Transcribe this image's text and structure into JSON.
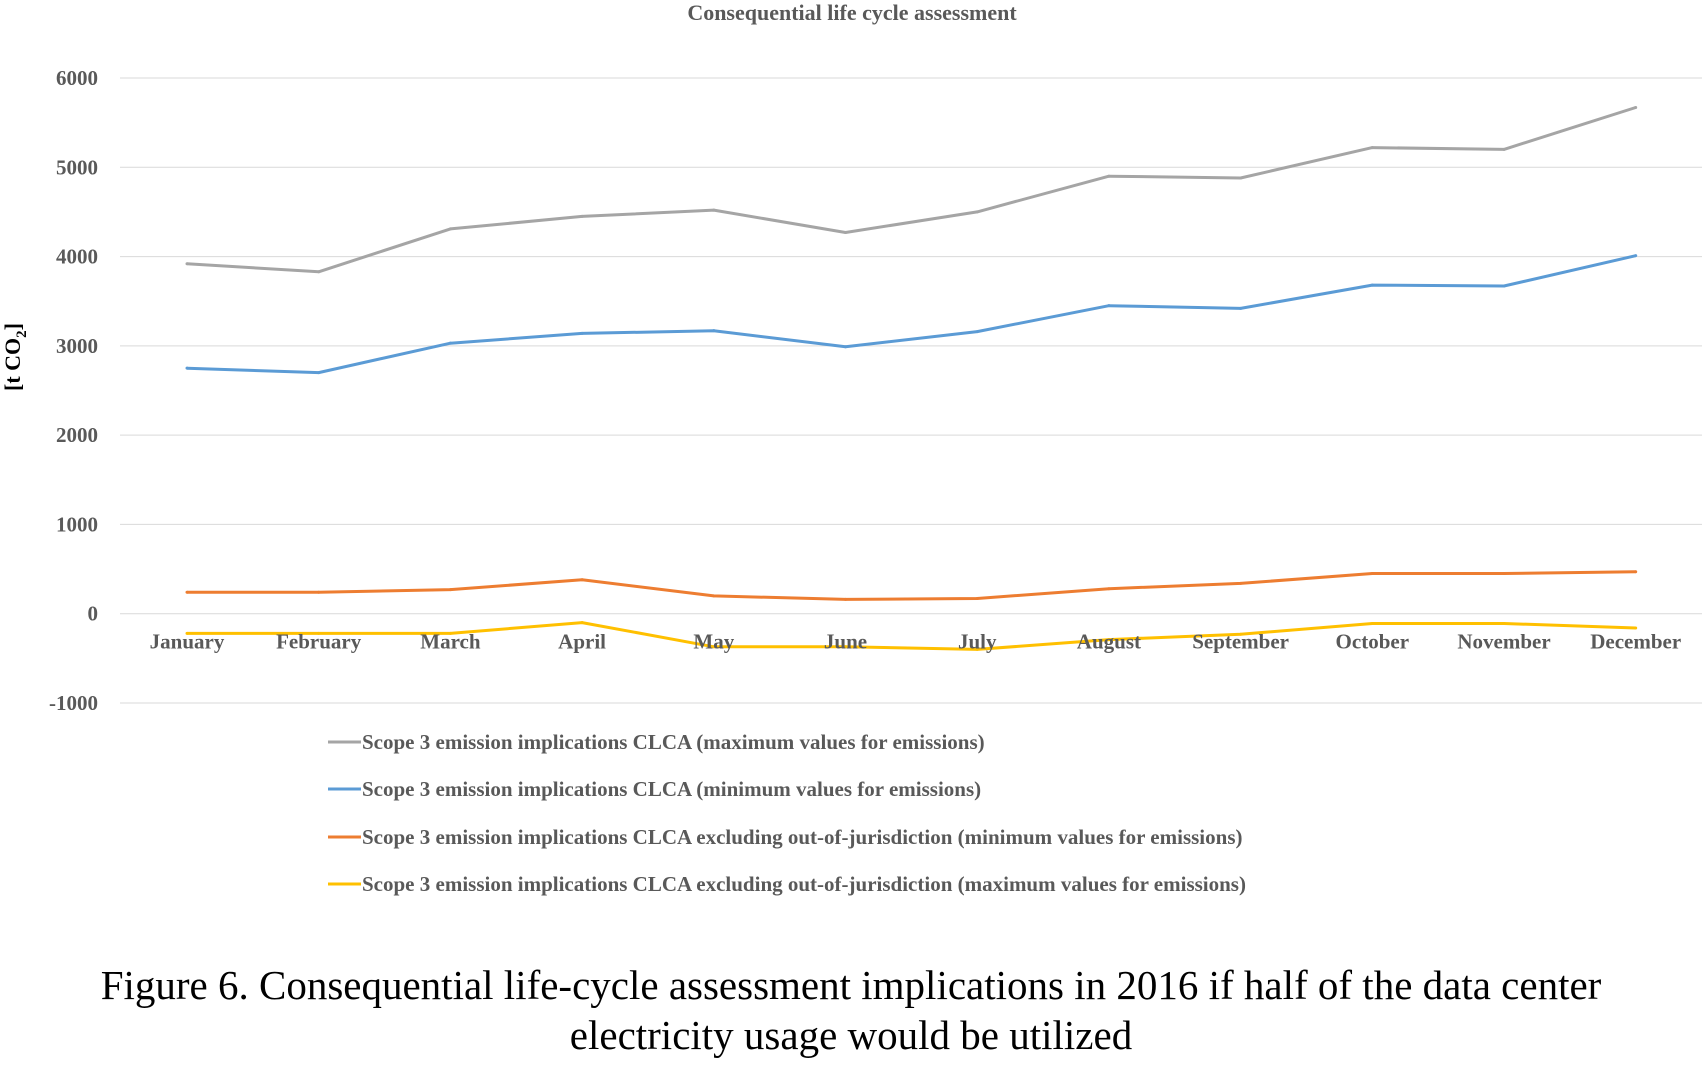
{
  "chart_data": {
    "type": "line",
    "title": "Consequential life cycle assessment",
    "ylabel": "[t CO2]",
    "xlabel": "",
    "ylim": [
      -1000,
      6000
    ],
    "yticks": [
      -1000,
      0,
      1000,
      2000,
      3000,
      4000,
      5000,
      6000
    ],
    "grid": true,
    "legend_position": "bottom",
    "categories": [
      "January",
      "February",
      "March",
      "April",
      "May",
      "June",
      "July",
      "August",
      "September",
      "October",
      "November",
      "December"
    ],
    "series": [
      {
        "name": "Scope 3 emission implications CLCA (maximum values for emissions)",
        "color": "#A5A5A5",
        "values": [
          3920,
          3830,
          4310,
          4450,
          4520,
          4270,
          4500,
          4900,
          4880,
          5220,
          5200,
          5670
        ]
      },
      {
        "name": "Scope 3 emission implications CLCA (minimum values for emissions)",
        "color": "#5B9BD5",
        "values": [
          2750,
          2700,
          3030,
          3140,
          3170,
          2990,
          3160,
          3450,
          3420,
          3680,
          3670,
          4010
        ]
      },
      {
        "name": "Scope 3 emission implications CLCA excluding out-of-jurisdiction (minimum values for emissions)",
        "color": "#ED7D31",
        "values": [
          240,
          240,
          270,
          380,
          200,
          160,
          170,
          280,
          340,
          450,
          450,
          470
        ]
      },
      {
        "name": "Scope 3 emission implications CLCA excluding out-of-jurisdiction (maximum values for emissions)",
        "color": "#FFC000",
        "values": [
          -220,
          -220,
          -220,
          -100,
          -370,
          -370,
          -400,
          -290,
          -230,
          -110,
          -110,
          -160
        ]
      }
    ]
  },
  "caption": {
    "line1": "Figure 6. Consequential life-cycle assessment implications in 2016 if half of the data center",
    "line2": "electricity usage would be utilized"
  }
}
